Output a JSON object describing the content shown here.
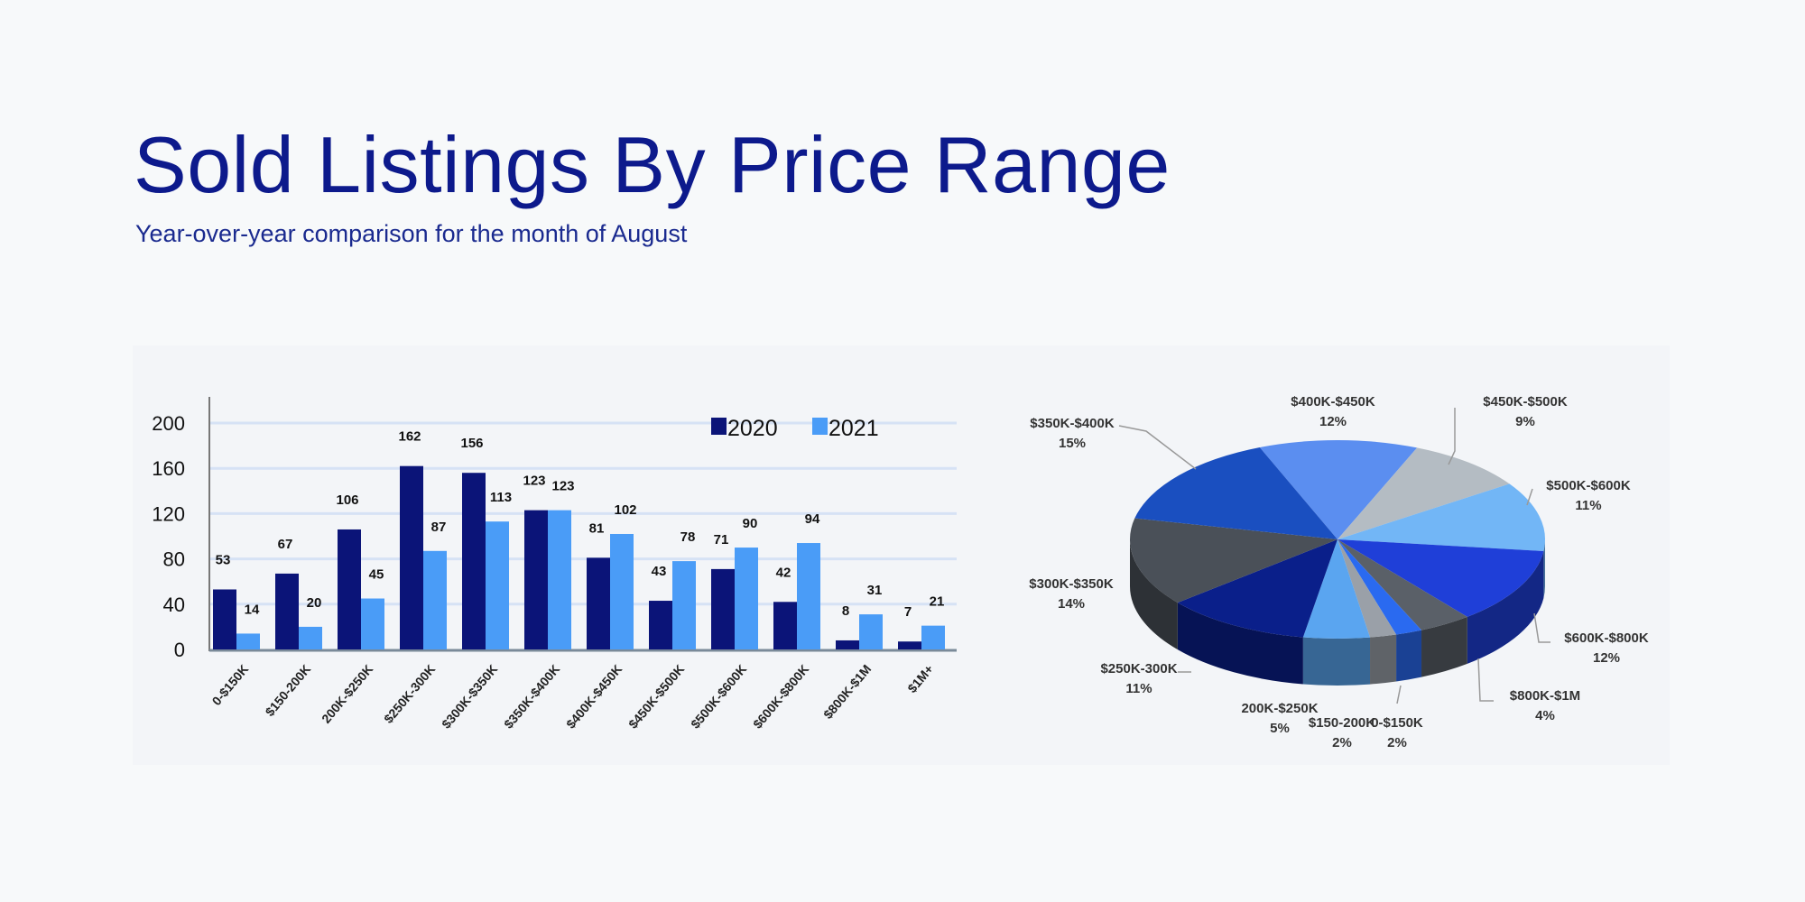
{
  "title": "Sold Listings By Price Range",
  "subtitle": "Year-over-year comparison for the month of August",
  "chart_data": [
    {
      "type": "bar",
      "categories": [
        "0-$150K",
        "$150-200K",
        "200K-$250K",
        "$250K-300K",
        "$300K-$350K",
        "$350K-$400K",
        "$400K-$450K",
        "$450K-$500K",
        "$500K-$600K",
        "$600K-$800K",
        "$800K-$1M",
        "$1M+"
      ],
      "series": [
        {
          "name": "2020",
          "color": "#0b1478",
          "values": [
            53,
            67,
            106,
            162,
            156,
            123,
            81,
            43,
            71,
            42,
            8,
            7
          ]
        },
        {
          "name": "2021",
          "color": "#4a9cf7",
          "values": [
            14,
            20,
            45,
            87,
            113,
            123,
            102,
            78,
            90,
            94,
            31,
            21
          ]
        }
      ],
      "yticks": [
        0,
        40,
        80,
        120,
        160,
        200
      ],
      "ylim": [
        0,
        220
      ],
      "grid": true,
      "legend": "top-right",
      "data_labels": true
    },
    {
      "type": "pie",
      "style": "3d",
      "slices": [
        {
          "label": "$400K-$450K",
          "value": 12,
          "text": "12%",
          "color": "#5b8ef0"
        },
        {
          "label": "$450K-$500K",
          "value": 9,
          "text": "9%",
          "color": "#b4bcc3"
        },
        {
          "label": "$500K-$600K",
          "value": 11,
          "text": "11%",
          "color": "#72b6f6"
        },
        {
          "label": "$600K-$800K",
          "value": 12,
          "text": "12%",
          "color": "#1f3fd8"
        },
        {
          "label": "$800K-$1M",
          "value": 4,
          "text": "4%",
          "color": "#5a6068"
        },
        {
          "label": "0-$150K",
          "value": 2,
          "text": "2%",
          "color": "#2a6af0"
        },
        {
          "label": "$150-200K",
          "value": 2,
          "text": "2%",
          "color": "#9aa0a8"
        },
        {
          "label": "200K-$250K",
          "value": 5,
          "text": "5%",
          "color": "#5aa5f0"
        },
        {
          "label": "$250K-300K",
          "value": 11,
          "text": "11%",
          "color": "#0a1f8a"
        },
        {
          "label": "$300K-$350K",
          "value": 14,
          "text": "14%",
          "color": "#4a5058"
        },
        {
          "label": "$350K-$400K",
          "value": 15,
          "text": "15%",
          "color": "#1a4fc0"
        }
      ]
    }
  ]
}
